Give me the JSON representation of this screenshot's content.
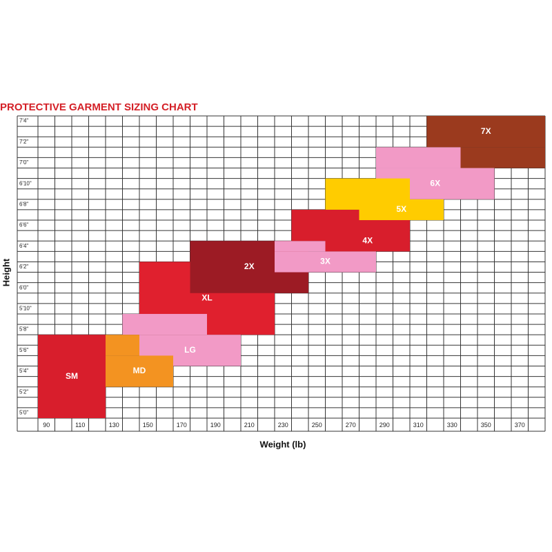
{
  "chart_data": {
    "type": "sizing-regions",
    "title": "PROTECTIVE GARMENT SIZING CHART",
    "x_label": "Weight (lb)",
    "y_label": "Height",
    "xlim": [
      85,
      385
    ],
    "ylim": [
      59.5,
      88.5
    ],
    "xticks": [
      90,
      110,
      130,
      150,
      170,
      190,
      210,
      230,
      250,
      270,
      290,
      310,
      330,
      350,
      370
    ],
    "yticks": [
      {
        "value": 60,
        "label": "5'0\""
      },
      {
        "value": 62,
        "label": "5'2\""
      },
      {
        "value": 64,
        "label": "5'4\""
      },
      {
        "value": 66,
        "label": "5'6\""
      },
      {
        "value": 68,
        "label": "5'8\""
      },
      {
        "value": 70,
        "label": "5'10\""
      },
      {
        "value": 72,
        "label": "6'0\""
      },
      {
        "value": 74,
        "label": "6'2\""
      },
      {
        "value": 76,
        "label": "6'4\""
      },
      {
        "value": 78,
        "label": "6'6\""
      },
      {
        "value": 80,
        "label": "6'8\""
      },
      {
        "value": 82,
        "label": "6'10\""
      },
      {
        "value": 84,
        "label": "7'0\""
      },
      {
        "value": 86,
        "label": "7'2\""
      },
      {
        "value": 88,
        "label": "7'4\""
      }
    ],
    "sizes": [
      {
        "label": "SM",
        "color": "#d81e2c",
        "rects": [
          [
            85,
            125,
            59.5,
            67.5
          ]
        ]
      },
      {
        "label": "XL",
        "color": "#e0202e",
        "rects": [
          [
            145,
            225,
            67.5,
            74.5
          ]
        ]
      },
      {
        "label": "LG",
        "color": "#f29ac6",
        "rects": [
          [
            145,
            205,
            64.5,
            67.5
          ],
          [
            135,
            185,
            67.5,
            69.5
          ]
        ]
      },
      {
        "label": "MD",
        "color": "#f39321",
        "rects": [
          [
            125,
            165,
            62.5,
            65.5
          ],
          [
            125,
            145,
            65.5,
            67.5
          ]
        ]
      },
      {
        "label": "2X",
        "color": "#9c1b24",
        "rects": [
          [
            175,
            245,
            71.5,
            76.5
          ]
        ]
      },
      {
        "label": "3X",
        "color": "#f29ac6",
        "rects": [
          [
            225,
            285,
            73.5,
            75.5
          ],
          [
            225,
            255,
            75.5,
            76.5
          ]
        ]
      },
      {
        "label": "4X",
        "color": "#d81e2c",
        "rects": [
          [
            255,
            305,
            75.5,
            77.5
          ],
          [
            235,
            305,
            76.5,
            79.5
          ]
        ]
      },
      {
        "label": "6X",
        "color": "#f29ac6",
        "rects": [
          [
            285,
            355,
            80.5,
            83.5
          ],
          [
            285,
            335,
            83.5,
            85.5
          ]
        ]
      },
      {
        "label": "5X",
        "color": "#ffcc00",
        "rects": [
          [
            275,
            325,
            78.5,
            80.5
          ],
          [
            255,
            305,
            79.5,
            82.5
          ]
        ]
      },
      {
        "label": "7X",
        "color": "#9b3a1e",
        "rects": [
          [
            315,
            385,
            85.5,
            88.5
          ],
          [
            335,
            385,
            83.5,
            85.5
          ]
        ]
      }
    ]
  }
}
